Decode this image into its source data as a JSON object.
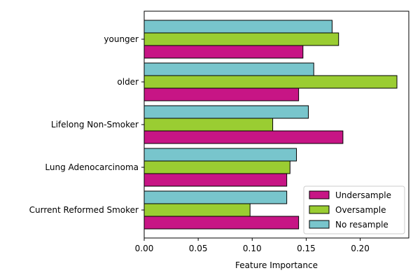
{
  "chart_data": {
    "type": "bar",
    "orientation": "horizontal",
    "categories": [
      "younger",
      "older",
      "Lifelong Non-Smoker",
      "Lung Adenocarcinoma",
      "Current Reformed Smoker"
    ],
    "series": [
      {
        "name": "Undersample",
        "color": "#c71585",
        "values": [
          0.147,
          0.143,
          0.184,
          0.132,
          0.143
        ]
      },
      {
        "name": "Oversample",
        "color": "#9acd32",
        "values": [
          0.18,
          0.234,
          0.119,
          0.135,
          0.098
        ]
      },
      {
        "name": "No resample",
        "color": "#78c5cc",
        "values": [
          0.174,
          0.157,
          0.152,
          0.141,
          0.132
        ]
      }
    ],
    "xlabel": "Feature Importance",
    "ylabel": "",
    "xlim": [
      0,
      0.245
    ],
    "xticks": [
      "0.00",
      "0.05",
      "0.10",
      "0.15",
      "0.20"
    ],
    "xtick_values": [
      0,
      0.05,
      0.1,
      0.15,
      0.2
    ],
    "grid": false,
    "legend_position": "bottom-right"
  }
}
